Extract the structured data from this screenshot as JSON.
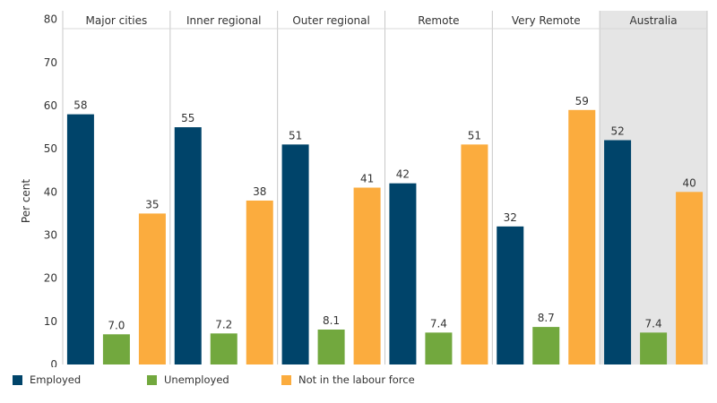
{
  "chart_data": {
    "type": "bar",
    "ylabel": "Per cent",
    "ylim": [
      0,
      82
    ],
    "yticks": [
      0,
      10,
      20,
      30,
      40,
      50,
      60,
      70,
      80
    ],
    "panels": [
      "Major cities",
      "Inner regional",
      "Outer regional",
      "Remote",
      "Very Remote",
      "Australia"
    ],
    "highlighted_panel": "Australia",
    "series": [
      {
        "name": "Employed",
        "color": "#00446a",
        "values": [
          58,
          55,
          51,
          42,
          32,
          52
        ],
        "labels": [
          "58",
          "55",
          "51",
          "42",
          "32",
          "52"
        ]
      },
      {
        "name": "Unemployed",
        "color": "#72a83e",
        "values": [
          7.0,
          7.2,
          8.1,
          7.4,
          8.7,
          7.4
        ],
        "labels": [
          "7.0",
          "7.2",
          "8.1",
          "7.4",
          "8.7",
          "7.4"
        ]
      },
      {
        "name": "Not in the labour force",
        "color": "#fbac3e",
        "values": [
          35,
          38,
          41,
          51,
          59,
          40
        ],
        "labels": [
          "35",
          "38",
          "41",
          "51",
          "59",
          "40"
        ]
      }
    ],
    "legend_position": "bottom-left",
    "grid": false
  }
}
